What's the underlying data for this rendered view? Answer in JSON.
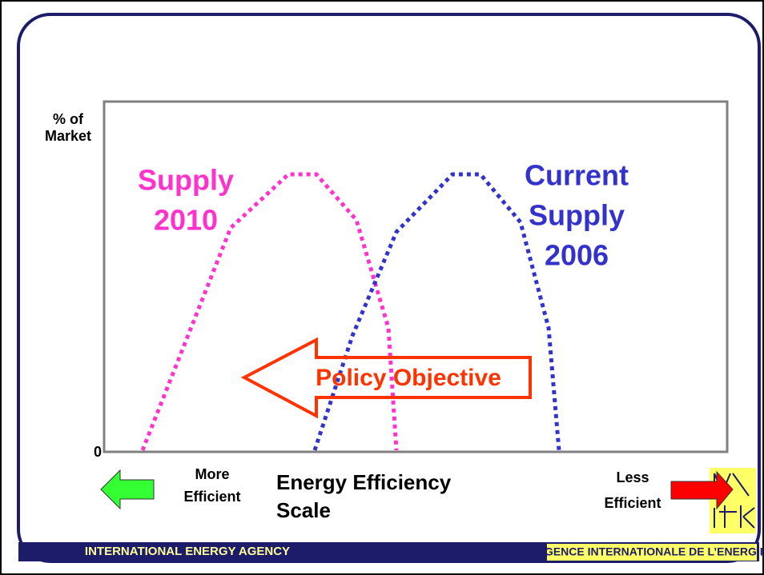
{
  "y_axis_label": [
    "% of",
    "Market"
  ],
  "y_tick": "0",
  "supply_2010": [
    "Supply",
    "2010"
  ],
  "current_supply": [
    "Current",
    "Supply",
    "2006"
  ],
  "policy_objective": "Policy Objective",
  "left_label": [
    "More",
    "Efficient"
  ],
  "x_axis_label": [
    "Energy Efficiency",
    "Scale"
  ],
  "right_label": [
    "Less",
    "Efficient"
  ],
  "footer": {
    "left": "INTERNATIONAL ENERGY AGENCY",
    "right": "AGENCE INTERNATIONALE DE L’ENERGIE"
  }
}
